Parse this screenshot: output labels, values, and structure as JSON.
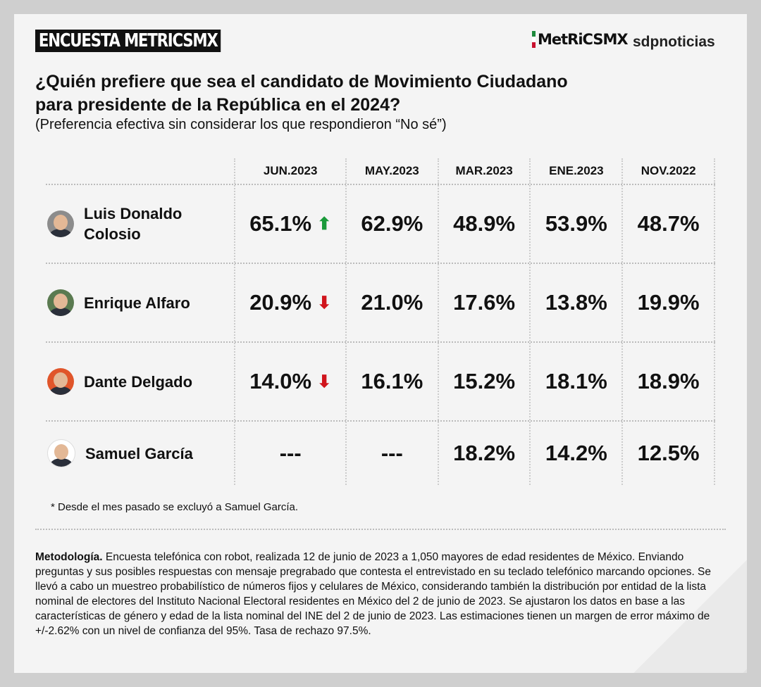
{
  "header": {
    "badge": "ENCUESTA METRICSMX",
    "logo_metrics": "MetRiCSMX",
    "logo_sdp": "sdpnoticias",
    "title_line1": "¿Quién prefiere que sea el candidato de Movimiento Ciudadano",
    "title_line2": "para presidente de la República en el 2024?",
    "subtitle": "(Preferencia efectiva sin considerar los que respondieron “No sé”)"
  },
  "colors": {
    "up": "#1a9a3a",
    "down": "#d0141c",
    "flag_green": "#1e8a3c",
    "flag_red": "#c8102e"
  },
  "chart_data": {
    "type": "table",
    "title": "¿Quién prefiere que sea el candidato de Movimiento Ciudadano para presidente de la República en el 2024?",
    "columns": [
      "JUN.2023",
      "MAY.2023",
      "MAR.2023",
      "ENE.2023",
      "NOV.2022"
    ],
    "rows": [
      {
        "name": "Luis Donaldo Colosio",
        "values": [
          "65.1%",
          "62.9%",
          "48.9%",
          "53.9%",
          "48.7%"
        ],
        "trend": "up",
        "avatar_bg": "#8c8c8c"
      },
      {
        "name": "Enrique Alfaro",
        "values": [
          "20.9%",
          "21.0%",
          "17.6%",
          "13.8%",
          "19.9%"
        ],
        "trend": "down",
        "avatar_bg": "#5a7a50"
      },
      {
        "name": "Dante Delgado",
        "values": [
          "14.0%",
          "16.1%",
          "15.2%",
          "18.1%",
          "18.9%"
        ],
        "trend": "down",
        "avatar_bg": "#e0552a"
      },
      {
        "name": "Samuel García",
        "values": [
          "---",
          "---",
          "18.2%",
          "14.2%",
          "12.5%"
        ],
        "trend": null,
        "avatar_bg": "#ffffff"
      }
    ]
  },
  "footnote": "* Desde el mes pasado se excluyó a Samuel García.",
  "methodology": {
    "label": "Metodología.",
    "text": " Encuesta telefónica con robot, realizada 12 de junio de 2023 a 1,050 mayores de edad residentes de México. Enviando preguntas y sus posibles respuestas con mensaje pregrabado que contesta el entrevistado en su teclado telefónico marcando opciones. Se llevó a cabo un muestreo probabilístico de números fijos y celulares de México, considerando también la distribución por entidad de la lista nominal de electores del Instituto Nacional Electoral residentes en México del 2 de junio de 2023. Se ajustaron los datos en base a las características de género y edad de la lista nominal del INE del 2 de junio de 2023. Las estimaciones tienen un margen de error máximo de +/-2.62% con un nivel de confianza del 95%. Tasa de rechazo 97.5%."
  }
}
